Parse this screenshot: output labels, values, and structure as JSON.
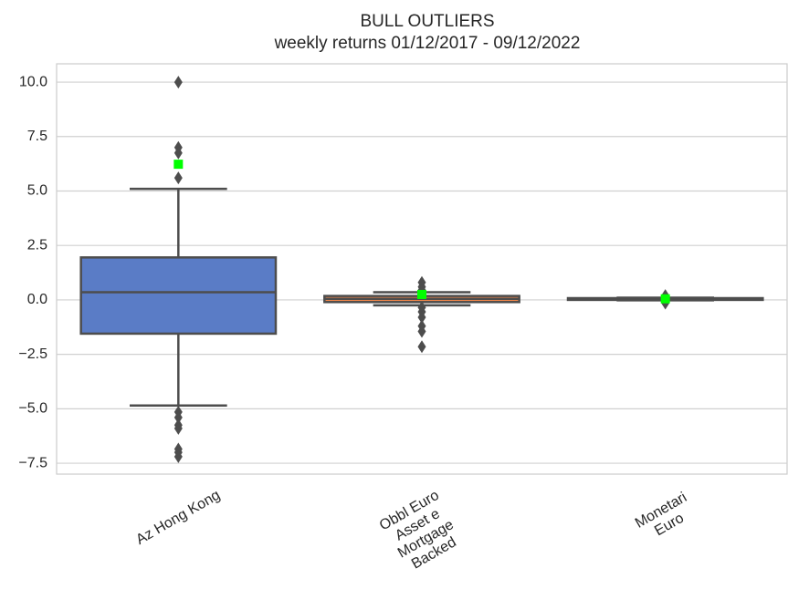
{
  "chart_data": {
    "type": "box",
    "title": "BULL OUTLIERS",
    "subtitle": "weekly returns 01/12/2017 - 09/12/2022",
    "categories": [
      [
        "Az Hong Kong"
      ],
      [
        "Obbl Euro",
        "Asset e",
        "Mortgage",
        "Backed"
      ],
      [
        "Monetari",
        "Euro"
      ]
    ],
    "colors": [
      "#5a7cc6",
      "#ee854a",
      "#6acc64"
    ],
    "mean_color": "#00ff00",
    "boxes": [
      {
        "whislo": -4.85,
        "q1": -1.55,
        "median": 0.35,
        "q3": 1.95,
        "whishi": 5.1,
        "mean": 6.23,
        "fliers": [
          10.0,
          7.0,
          6.75,
          5.6,
          -5.15,
          -5.4,
          -5.75,
          -5.9,
          -6.85,
          -7.0,
          -7.2
        ]
      },
      {
        "whislo": -0.25,
        "q1": -0.1,
        "median": 0.05,
        "q3": 0.18,
        "whishi": 0.35,
        "mean": 0.25,
        "fliers": [
          0.8,
          0.6,
          0.45,
          -0.35,
          -0.55,
          -0.8,
          -1.2,
          -1.45,
          -2.15
        ]
      },
      {
        "whislo": -0.02,
        "q1": 0.0,
        "median": 0.03,
        "q3": 0.08,
        "whishi": 0.1,
        "mean": 0.05,
        "fliers": [
          0.2,
          -0.15
        ]
      }
    ],
    "ylim": [
      -8.0,
      10.84
    ],
    "yticks": [
      {
        "value": -7.5,
        "label": "−7.5"
      },
      {
        "value": -5.0,
        "label": "−5.0"
      },
      {
        "value": -2.5,
        "label": "−2.5"
      },
      {
        "value": 0,
        "label": "0.0"
      },
      2.5,
      {
        "value": 5.0,
        "label": "5.0"
      },
      7.5,
      {
        "value": 10.0,
        "label": "10.0"
      }
    ],
    "grid": true
  }
}
